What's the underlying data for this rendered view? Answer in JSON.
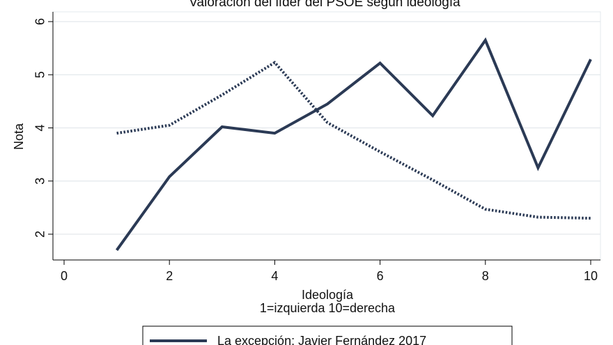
{
  "chart_data": {
    "type": "line",
    "title": "Valoración del líder del PSOE según ideología",
    "xlabel": "Ideología",
    "xlabel2": "1=izquierda 10=derecha",
    "ylabel": "Nota",
    "xlim": [
      0,
      10
    ],
    "ylim": [
      1.55,
      6.1
    ],
    "xticks": [
      0,
      2,
      4,
      6,
      8,
      10
    ],
    "yticks": [
      2,
      3,
      4,
      5,
      6
    ],
    "grid": "horizontal",
    "legend_position": "bottom",
    "series": [
      {
        "name": "La excepción: Javier Fernández 2017",
        "style": "solid",
        "color": "#2b3a55",
        "x": [
          1,
          2,
          3,
          4,
          5,
          6,
          7,
          8,
          9,
          10
        ],
        "values": [
          1.7,
          3.08,
          4.02,
          3.9,
          4.45,
          5.22,
          4.23,
          5.65,
          3.25,
          5.29
        ]
      },
      {
        "name": "",
        "style": "dotted",
        "color": "#2b3a55",
        "x": [
          1,
          2,
          3,
          4,
          5,
          6,
          7,
          8,
          9,
          10
        ],
        "values": [
          3.9,
          4.05,
          4.62,
          5.23,
          4.1,
          3.55,
          3.02,
          2.47,
          2.32,
          2.3
        ]
      }
    ]
  }
}
